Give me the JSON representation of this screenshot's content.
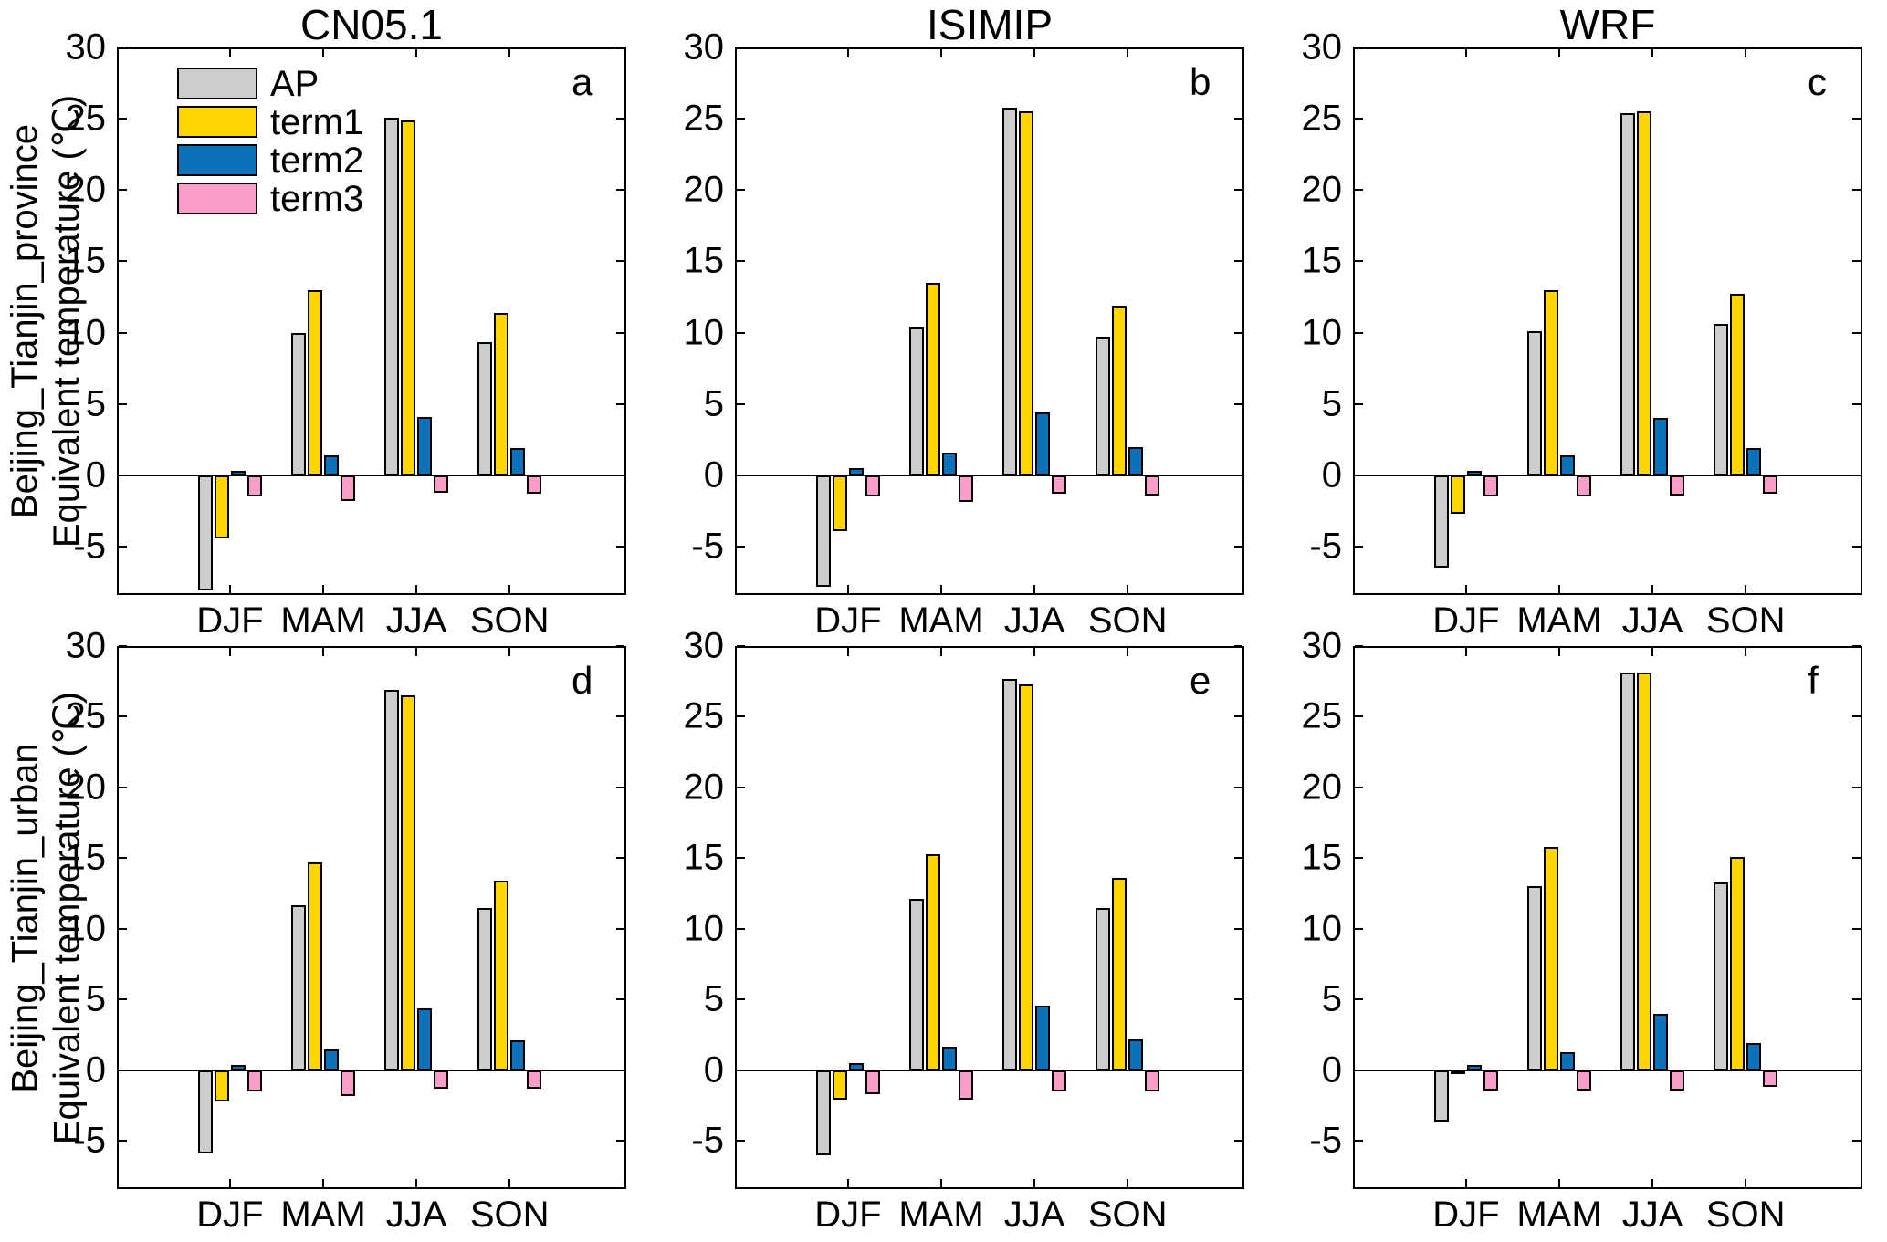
{
  "figure": {
    "columns": [
      "CN05.1",
      "ISIMIP",
      "WRF"
    ],
    "rows": [
      {
        "label_line1": "Beijing_Tianjin_province",
        "label_line2": "Equivalent temperature (℃)"
      },
      {
        "label_line1": "Beijing_Tianjin_urban",
        "label_line2": "Equivalent temperature (℃)"
      }
    ],
    "legend": {
      "position": "top-left-panel-a",
      "entries": [
        {
          "label": "AP",
          "color": "#CDCDCD"
        },
        {
          "label": "term1",
          "color": "#FFD400"
        },
        {
          "label": "term2",
          "color": "#0B72B9"
        },
        {
          "label": "term3",
          "color": "#FB9DCB"
        }
      ]
    }
  },
  "chart_data": [
    {
      "panel_letter": "a",
      "type": "bar",
      "title": "CN05.1",
      "region": "Beijing_Tianjin_province",
      "ylabel": "Equivalent temperature (℃)",
      "grid": false,
      "legend_visible": true,
      "categories": [
        "DJF",
        "MAM",
        "JJA",
        "SON"
      ],
      "ylim": [
        -8.4,
        30
      ],
      "yticks": [
        30,
        25,
        20,
        15,
        10,
        5,
        0,
        -5
      ],
      "series": [
        {
          "name": "AP",
          "color": "#CDCDCD",
          "values": [
            -8.1,
            10.0,
            25.1,
            9.3
          ]
        },
        {
          "name": "term1",
          "color": "#FFD400",
          "values": [
            -4.4,
            13.0,
            24.9,
            11.4
          ]
        },
        {
          "name": "term2",
          "color": "#0B72B9",
          "values": [
            0.3,
            1.4,
            4.1,
            1.9
          ]
        },
        {
          "name": "term3",
          "color": "#FB9DCB",
          "values": [
            -1.5,
            -1.8,
            -1.2,
            -1.3
          ]
        }
      ]
    },
    {
      "panel_letter": "b",
      "type": "bar",
      "title": "ISIMIP",
      "region": "Beijing_Tianjin_province",
      "ylabel": "Equivalent temperature (℃)",
      "grid": false,
      "legend_visible": false,
      "categories": [
        "DJF",
        "MAM",
        "JJA",
        "SON"
      ],
      "ylim": [
        -8.4,
        30
      ],
      "yticks": [
        30,
        25,
        20,
        15,
        10,
        5,
        0,
        -5
      ],
      "series": [
        {
          "name": "AP",
          "color": "#CDCDCD",
          "values": [
            -7.8,
            10.4,
            25.8,
            9.7
          ]
        },
        {
          "name": "term1",
          "color": "#FFD400",
          "values": [
            -3.9,
            13.5,
            25.5,
            11.9
          ]
        },
        {
          "name": "term2",
          "color": "#0B72B9",
          "values": [
            0.5,
            1.6,
            4.4,
            2.0
          ]
        },
        {
          "name": "term3",
          "color": "#FB9DCB",
          "values": [
            -1.5,
            -1.9,
            -1.3,
            -1.4
          ]
        }
      ]
    },
    {
      "panel_letter": "c",
      "type": "bar",
      "title": "WRF",
      "region": "Beijing_Tianjin_province",
      "ylabel": "Equivalent temperature (℃)",
      "grid": false,
      "legend_visible": false,
      "categories": [
        "DJF",
        "MAM",
        "JJA",
        "SON"
      ],
      "ylim": [
        -8.4,
        30
      ],
      "yticks": [
        30,
        25,
        20,
        15,
        10,
        5,
        0,
        -5
      ],
      "series": [
        {
          "name": "AP",
          "color": "#CDCDCD",
          "values": [
            -6.5,
            10.1,
            25.4,
            10.6
          ]
        },
        {
          "name": "term1",
          "color": "#FFD400",
          "values": [
            -2.7,
            13.0,
            25.5,
            12.7
          ]
        },
        {
          "name": "term2",
          "color": "#0B72B9",
          "values": [
            0.3,
            1.4,
            4.0,
            1.9
          ]
        },
        {
          "name": "term3",
          "color": "#FB9DCB",
          "values": [
            -1.5,
            -1.5,
            -1.4,
            -1.3
          ]
        }
      ]
    },
    {
      "panel_letter": "d",
      "type": "bar",
      "title": "CN05.1",
      "region": "Beijing_Tianjin_urban",
      "ylabel": "Equivalent temperature (℃)",
      "grid": false,
      "legend_visible": false,
      "categories": [
        "DJF",
        "MAM",
        "JJA",
        "SON"
      ],
      "ylim": [
        -8.4,
        30
      ],
      "yticks": [
        30,
        25,
        20,
        15,
        10,
        5,
        0,
        -5
      ],
      "series": [
        {
          "name": "AP",
          "color": "#CDCDCD",
          "values": [
            -5.9,
            11.7,
            26.9,
            11.5
          ]
        },
        {
          "name": "term1",
          "color": "#FFD400",
          "values": [
            -2.2,
            14.7,
            26.5,
            13.4
          ]
        },
        {
          "name": "term2",
          "color": "#0B72B9",
          "values": [
            0.4,
            1.5,
            4.4,
            2.1
          ]
        },
        {
          "name": "term3",
          "color": "#FB9DCB",
          "values": [
            -1.5,
            -1.8,
            -1.3,
            -1.3
          ]
        }
      ]
    },
    {
      "panel_letter": "e",
      "type": "bar",
      "title": "ISIMIP",
      "region": "Beijing_Tianjin_urban",
      "ylabel": "Equivalent temperature (℃)",
      "grid": false,
      "legend_visible": false,
      "categories": [
        "DJF",
        "MAM",
        "JJA",
        "SON"
      ],
      "ylim": [
        -8.4,
        30
      ],
      "yticks": [
        30,
        25,
        20,
        15,
        10,
        5,
        0,
        -5
      ],
      "series": [
        {
          "name": "AP",
          "color": "#CDCDCD",
          "values": [
            -6.0,
            12.1,
            27.7,
            11.5
          ]
        },
        {
          "name": "term1",
          "color": "#FFD400",
          "values": [
            -2.1,
            15.3,
            27.3,
            13.6
          ]
        },
        {
          "name": "term2",
          "color": "#0B72B9",
          "values": [
            0.5,
            1.7,
            4.6,
            2.2
          ]
        },
        {
          "name": "term3",
          "color": "#FB9DCB",
          "values": [
            -1.7,
            -2.1,
            -1.5,
            -1.5
          ]
        }
      ]
    },
    {
      "panel_letter": "f",
      "type": "bar",
      "title": "WRF",
      "region": "Beijing_Tianjin_urban",
      "ylabel": "Equivalent temperature (℃)",
      "grid": false,
      "legend_visible": false,
      "categories": [
        "DJF",
        "MAM",
        "JJA",
        "SON"
      ],
      "ylim": [
        -8.4,
        30
      ],
      "yticks": [
        30,
        25,
        20,
        15,
        10,
        5,
        0,
        -5
      ],
      "series": [
        {
          "name": "AP",
          "color": "#CDCDCD",
          "values": [
            -3.6,
            13.0,
            28.1,
            13.3
          ]
        },
        {
          "name": "term1",
          "color": "#FFD400",
          "values": [
            -0.1,
            15.8,
            28.1,
            15.1
          ]
        },
        {
          "name": "term2",
          "color": "#0B72B9",
          "values": [
            0.4,
            1.3,
            4.0,
            1.9
          ]
        },
        {
          "name": "term3",
          "color": "#FB9DCB",
          "values": [
            -1.4,
            -1.4,
            -1.4,
            -1.2
          ]
        }
      ]
    }
  ]
}
